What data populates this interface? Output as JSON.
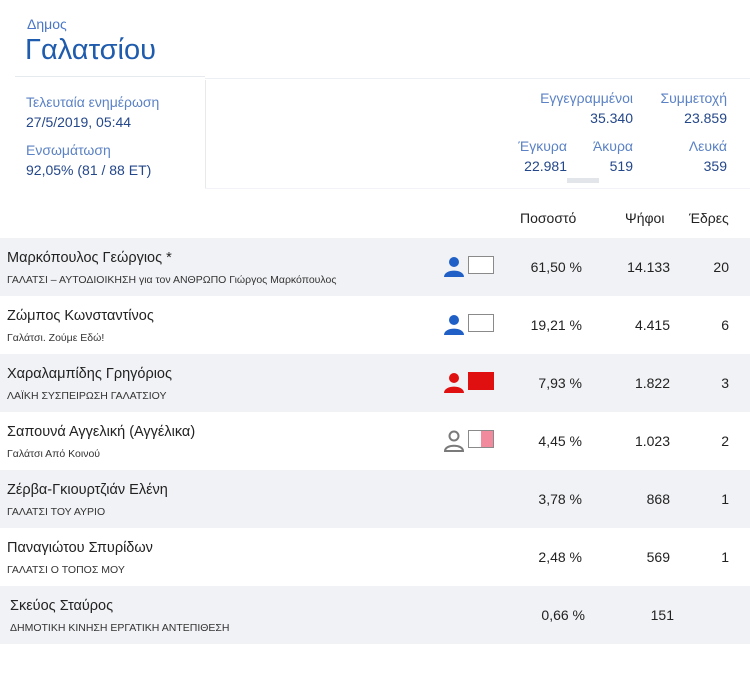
{
  "header": {
    "municipality_label": "Δημος",
    "municipality_name": "Γαλατσίου"
  },
  "info": {
    "last_update_label": "Τελευταία ενημέρωση",
    "last_update_value": "27/5/2019, 05:44",
    "integration_label": "Ενσωμάτωση",
    "integration_value": "92,05% (81 / 88 ΕΤ)"
  },
  "stats": {
    "registered_label": "Εγγεγραμμένοι",
    "registered_value": "35.340",
    "turnout_label": "Συμμετοχή",
    "turnout_value": "23.859",
    "valid_label": "Έγκυρα",
    "valid_value": "22.981",
    "invalid_label": "Άκυρα",
    "invalid_value": "519",
    "blank_label": "Λευκά",
    "blank_value": "359"
  },
  "table": {
    "headers": {
      "percent": "Ποσοστό",
      "votes": "Ψήφοι",
      "seats": "Έδρες"
    },
    "rows": [
      {
        "name": "Μαρκόπουλος Γεώργιος *",
        "party": "ΓΑΛΑΤΣΙ – ΑΥΤΟΔΙΟΙΚΗΣΗ για τον ΑΝΘΡΩΠΟ Γιώργος Μαρκόπουλος",
        "percent": "61,50 %",
        "votes": "14.133",
        "seats": "20",
        "icon_color": "#1f5fc6",
        "icon_outline": false,
        "flag_color": "#ffffff",
        "flag_border": "#8a8a8a",
        "bold": true
      },
      {
        "name": "Ζώμπος Κωνσταντίνος",
        "party": "Γαλάτσι. Ζούμε Εδώ!",
        "percent": "19,21 %",
        "votes": "4.415",
        "seats": "6",
        "icon_color": "#1f5fc6",
        "icon_outline": false,
        "flag_color": "#ffffff",
        "flag_border": "#8a8a8a",
        "bold": false
      },
      {
        "name": "Χαραλαμπίδης Γρηγόριος",
        "party": "ΛΑΪΚΗ ΣΥΣΠΕΙΡΩΣΗ ΓΑΛΑΤΣΙΟΥ",
        "percent": "7,93 %",
        "votes": "1.822",
        "seats": "3",
        "icon_color": "#e01010",
        "icon_outline": false,
        "flag_color": "#e01010",
        "flag_border": "#e01010",
        "bold": false
      },
      {
        "name": "Σαπουνά Αγγελική (Αγγέλικα)",
        "party": "Γαλάτσι Από Κοινού",
        "percent": "4,45 %",
        "votes": "1.023",
        "seats": "2",
        "icon_color": "#7a7a7a",
        "icon_outline": true,
        "flag_color": "split",
        "flag_border": "#8a8a8a",
        "bold": false
      },
      {
        "name": "Ζέρβα-Γκιουρτζιάν Ελένη",
        "party": "ΓΑΛΑΤΣΙ ΤΟΥ ΑΥΡΙΟ",
        "percent": "3,78 %",
        "votes": "868",
        "seats": "1",
        "icon_color": "",
        "icon_outline": false,
        "flag_color": "",
        "flag_border": "",
        "bold": false
      },
      {
        "name": "Παναγιώτου Σπυρίδων",
        "party": "ΓΑΛΑΤΣΙ Ο ΤΟΠΟΣ ΜΟΥ",
        "percent": "2,48 %",
        "votes": "569",
        "seats": "1",
        "icon_color": "",
        "icon_outline": false,
        "flag_color": "",
        "flag_border": "",
        "bold": false
      },
      {
        "name": "Σκεύος Σταύρος",
        "party": "ΔΗΜΟΤΙΚΗ ΚΙΝΗΣΗ ΕΡΓΑΤΙΚΗ ΑΝΤΕΠΙΘΕΣΗ",
        "percent": "0,66 %",
        "votes": "151",
        "seats": "",
        "icon_color": "",
        "icon_outline": false,
        "flag_color": "",
        "flag_border": "",
        "bold": false
      }
    ]
  }
}
